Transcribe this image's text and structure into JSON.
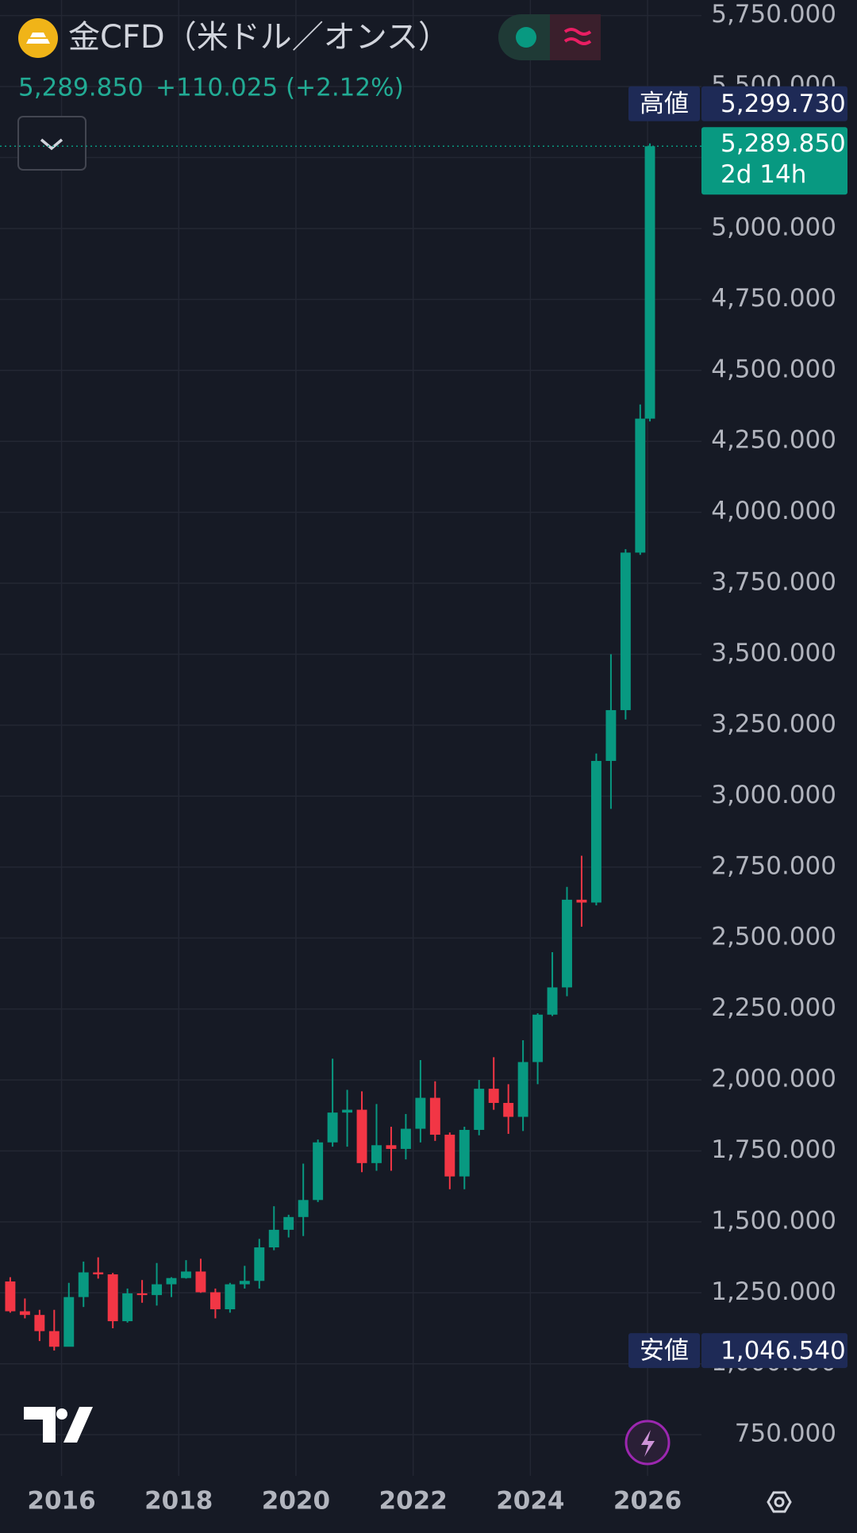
{
  "header": {
    "title": "金CFD（米ドル／オンス）",
    "price": "5,289.850",
    "change": "+110.025 (+2.12%)"
  },
  "chart_data": {
    "type": "candlestick",
    "xlim": [
      2014.95,
      2026.92
    ],
    "xticks": [
      2016,
      2018,
      2020,
      2022,
      2024,
      2026
    ],
    "ylim": [
      605,
      5805
    ],
    "yticks": [
      {
        "value": 750,
        "label": "750.000"
      },
      {
        "value": 1000,
        "label": "1,000.000"
      },
      {
        "value": 1250,
        "label": "1,250.000"
      },
      {
        "value": 1500,
        "label": "1,500.000"
      },
      {
        "value": 1750,
        "label": "1,750.000"
      },
      {
        "value": 2000,
        "label": "2,000.000"
      },
      {
        "value": 2250,
        "label": "2,250.000"
      },
      {
        "value": 2500,
        "label": "2,500.000"
      },
      {
        "value": 2750,
        "label": "2,750.000"
      },
      {
        "value": 3000,
        "label": "3,000.000"
      },
      {
        "value": 3250,
        "label": "3,250.000"
      },
      {
        "value": 3500,
        "label": "3,500.000"
      },
      {
        "value": 3750,
        "label": "3,750.000"
      },
      {
        "value": 4000,
        "label": "4,000.000"
      },
      {
        "value": 4250,
        "label": "4,250.000"
      },
      {
        "value": 4500,
        "label": "4,500.000"
      },
      {
        "value": 4750,
        "label": "4,750.000"
      },
      {
        "value": 5000,
        "label": "5,000.000"
      },
      {
        "value": 5250,
        "label": "5,250.000"
      },
      {
        "value": 5500,
        "label": "5,500.000"
      },
      {
        "value": 5750,
        "label": "5,750.000"
      }
    ],
    "grid": true,
    "up_color": "#089981",
    "down_color": "#f23645",
    "x": [
      2015.125,
      2015.375,
      2015.625,
      2015.875,
      2016.125,
      2016.375,
      2016.625,
      2016.875,
      2017.125,
      2017.375,
      2017.625,
      2017.875,
      2018.125,
      2018.375,
      2018.625,
      2018.875,
      2019.125,
      2019.375,
      2019.625,
      2019.875,
      2020.125,
      2020.375,
      2020.625,
      2020.875,
      2021.125,
      2021.375,
      2021.625,
      2021.875,
      2022.125,
      2022.375,
      2022.625,
      2022.875,
      2023.125,
      2023.375,
      2023.625,
      2023.875,
      2024.125,
      2024.375,
      2024.625,
      2024.875,
      2025.125,
      2025.375,
      2025.625,
      2025.875,
      2026.04
    ],
    "open": [
      1290,
      1185,
      1172,
      1115,
      1060,
      1235,
      1322,
      1315,
      1150,
      1248,
      1242,
      1280,
      1302,
      1325,
      1252,
      1192,
      1280,
      1292,
      1410,
      1472,
      1517,
      1577,
      1780,
      1885,
      1895,
      1707,
      1770,
      1757,
      1828,
      1937,
      1807,
      1660,
      1824,
      1969,
      1919,
      1870,
      2063,
      2230,
      2326,
      2635,
      2625,
      3124,
      3303,
      3858,
      4330
    ],
    "high": [
      1305,
      1230,
      1190,
      1190,
      1285,
      1360,
      1375,
      1320,
      1265,
      1295,
      1355,
      1305,
      1365,
      1370,
      1265,
      1285,
      1345,
      1440,
      1555,
      1525,
      1705,
      1790,
      2075,
      1965,
      1960,
      1915,
      1835,
      1880,
      2070,
      1995,
      1815,
      1835,
      2000,
      2080,
      1985,
      2140,
      2235,
      2450,
      2680,
      2790,
      3150,
      3500,
      3870,
      4380,
      5299.73
    ],
    "low": [
      1180,
      1160,
      1080,
      1046.54,
      1070,
      1200,
      1300,
      1125,
      1145,
      1215,
      1205,
      1235,
      1300,
      1250,
      1160,
      1180,
      1265,
      1265,
      1400,
      1445,
      1450,
      1570,
      1765,
      1765,
      1675,
      1680,
      1680,
      1720,
      1780,
      1785,
      1615,
      1615,
      1805,
      1895,
      1810,
      1820,
      1985,
      2225,
      2295,
      2540,
      2615,
      2955,
      3270,
      3850,
      4320
    ],
    "close": [
      1185,
      1172,
      1115,
      1060,
      1235,
      1322,
      1315,
      1150,
      1248,
      1242,
      1280,
      1302,
      1325,
      1252,
      1192,
      1280,
      1292,
      1410,
      1472,
      1517,
      1577,
      1780,
      1885,
      1895,
      1707,
      1770,
      1757,
      1828,
      1937,
      1807,
      1660,
      1824,
      1969,
      1919,
      1870,
      2063,
      2230,
      2326,
      2635,
      2625,
      3124,
      3303,
      3858,
      4330,
      5289.85
    ],
    "price_labels": [
      {
        "name": "高値",
        "value": 5299.73,
        "label": "5,299.730"
      },
      {
        "name": "安値",
        "value": 1046.54,
        "label": "1,046.540"
      }
    ],
    "last_price": {
      "value": 5289.85,
      "label": "5,289.850",
      "countdown": "2d 14h"
    }
  }
}
